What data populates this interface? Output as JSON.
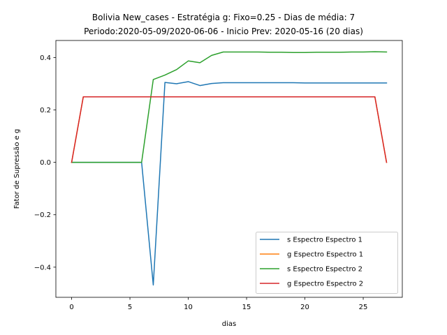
{
  "chart_data": {
    "type": "line",
    "title": "Bolivia New_cases - Estratégia g: Fixo=0.25 - Dias de média: 7",
    "subtitle": "Periodo:2020-05-09/2020-06-06 - Inicio Prev: 2020-05-16 (20 dias)",
    "xlabel": "dias",
    "ylabel": "Fator de Supressão e g",
    "xlim": [
      -1.35,
      28.35
    ],
    "ylim": [
      -0.515,
      0.465
    ],
    "xticks": [
      0,
      5,
      10,
      15,
      20,
      25
    ],
    "xtick_labels": [
      "0",
      "5",
      "10",
      "15",
      "20",
      "25"
    ],
    "yticks": [
      -0.4,
      -0.2,
      0.0,
      0.2,
      0.4
    ],
    "ytick_labels": [
      "−0.4",
      "−0.2",
      "0.0",
      "0.2",
      "0.4"
    ],
    "grid": false,
    "legend_position": "lower-right",
    "x": [
      0,
      1,
      2,
      3,
      4,
      5,
      6,
      7,
      8,
      9,
      10,
      11,
      12,
      13,
      14,
      15,
      16,
      17,
      18,
      19,
      20,
      21,
      22,
      23,
      24,
      25,
      26,
      27
    ],
    "series": [
      {
        "name": "s Espectro Espectro 1",
        "color": "#1f77b4",
        "values": [
          0,
          0,
          0,
          0,
          0,
          0,
          0,
          -0.468,
          0.305,
          0.3,
          0.308,
          0.293,
          0.301,
          0.304,
          0.304,
          0.304,
          0.304,
          0.304,
          0.304,
          0.304,
          0.303,
          0.303,
          0.303,
          0.303,
          0.303,
          0.303,
          0.303,
          0.303
        ]
      },
      {
        "name": "g Espectro Espectro 1",
        "color": "#ff7f0e",
        "values": [
          0,
          0.25,
          0.25,
          0.25,
          0.25,
          0.25,
          0.25,
          0.25,
          0.25,
          0.25,
          0.25,
          0.25,
          0.25,
          0.25,
          0.25,
          0.25,
          0.25,
          0.25,
          0.25,
          0.25,
          0.25,
          0.25,
          0.25,
          0.25,
          0.25,
          0.25,
          0.25,
          0
        ]
      },
      {
        "name": "s Espectro Espectro 2",
        "color": "#2ca02c",
        "values": [
          0,
          0,
          0,
          0,
          0,
          0,
          0,
          0.316,
          0.333,
          0.354,
          0.387,
          0.38,
          0.408,
          0.421,
          0.421,
          0.421,
          0.421,
          0.42,
          0.42,
          0.419,
          0.419,
          0.42,
          0.42,
          0.42,
          0.421,
          0.421,
          0.422,
          0.421
        ]
      },
      {
        "name": "g Espectro Espectro 2",
        "color": "#d62728",
        "values": [
          0,
          0.25,
          0.25,
          0.25,
          0.25,
          0.25,
          0.25,
          0.25,
          0.25,
          0.25,
          0.25,
          0.25,
          0.25,
          0.25,
          0.25,
          0.25,
          0.25,
          0.25,
          0.25,
          0.25,
          0.25,
          0.25,
          0.25,
          0.25,
          0.25,
          0.25,
          0.25,
          0
        ]
      }
    ]
  }
}
